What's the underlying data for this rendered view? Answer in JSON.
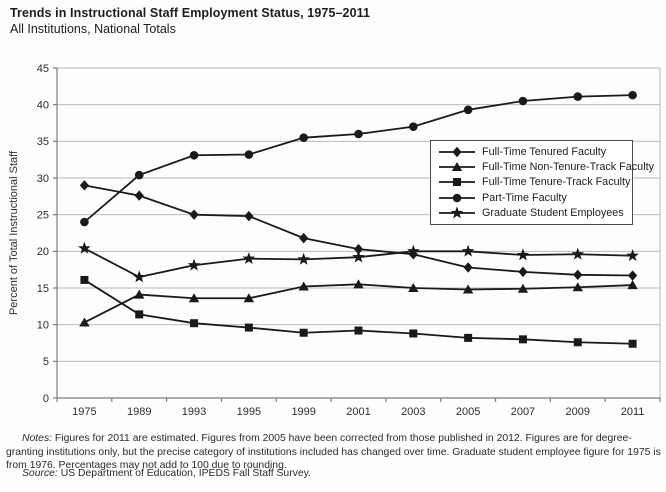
{
  "header": {
    "title": "Trends in Instructional Staff Employment Status, 1975–2011",
    "subtitle": "All Institutions, National Totals"
  },
  "chart_data": {
    "type": "line",
    "title": "Trends in Instructional Staff Employment Status, 1975–2011",
    "subtitle": "All Institutions, National Totals",
    "xlabel": "",
    "ylabel": "Percent of Total Instructional Staff",
    "ylim": [
      0,
      45
    ],
    "ytick_step": 5,
    "grid": true,
    "legend_position": "inside-upper-right",
    "categories": [
      "1975",
      "1989",
      "1993",
      "1995",
      "1999",
      "2001",
      "2003",
      "2005",
      "2007",
      "2009",
      "2011"
    ],
    "series": [
      {
        "name": "Full-Time Tenured Faculty",
        "marker": "diamond",
        "values": [
          29.0,
          27.6,
          25.0,
          24.8,
          21.8,
          20.3,
          19.6,
          17.8,
          17.2,
          16.8,
          16.7
        ]
      },
      {
        "name": "Full-Time Non-Tenure-Track Faculty",
        "marker": "triangle",
        "values": [
          10.3,
          14.1,
          13.6,
          13.6,
          15.2,
          15.5,
          15.0,
          14.8,
          14.9,
          15.1,
          15.4
        ]
      },
      {
        "name": "Full-Time Tenure-Track Faculty",
        "marker": "square",
        "values": [
          16.1,
          11.4,
          10.2,
          9.6,
          8.9,
          9.2,
          8.8,
          8.2,
          8.0,
          7.6,
          7.4
        ]
      },
      {
        "name": "Part-Time Faculty",
        "marker": "circle",
        "values": [
          24.0,
          30.4,
          33.1,
          33.2,
          35.5,
          36.0,
          37.0,
          39.3,
          40.5,
          41.1,
          41.3
        ]
      },
      {
        "name": "Graduate Student Employees",
        "marker": "star",
        "values": [
          20.4,
          16.5,
          18.1,
          19.0,
          18.9,
          19.2,
          20.0,
          20.0,
          19.5,
          19.6,
          19.4
        ]
      }
    ],
    "colors": {
      "series": "#1a1a1a",
      "grid": "#b9b9b9",
      "axis": "#7d7d7d",
      "text": "#2e2e2e",
      "legend_border": "#4a4a4a",
      "background": "#fdfdfc"
    }
  },
  "notes": {
    "label": "Notes:",
    "text": " Figures for 2011 are estimated. Figures from 2005 have been corrected from those published in 2012. Figures are for degree-granting institutions only, but the precise category of institutions included has changed over time. Graduate student employee figure for 1975 is from 1976. Percentages may not add to 100 due to rounding."
  },
  "source": {
    "label": "Source:",
    "text": " US Department of Education, IPEDS Fall Staff Survey."
  }
}
